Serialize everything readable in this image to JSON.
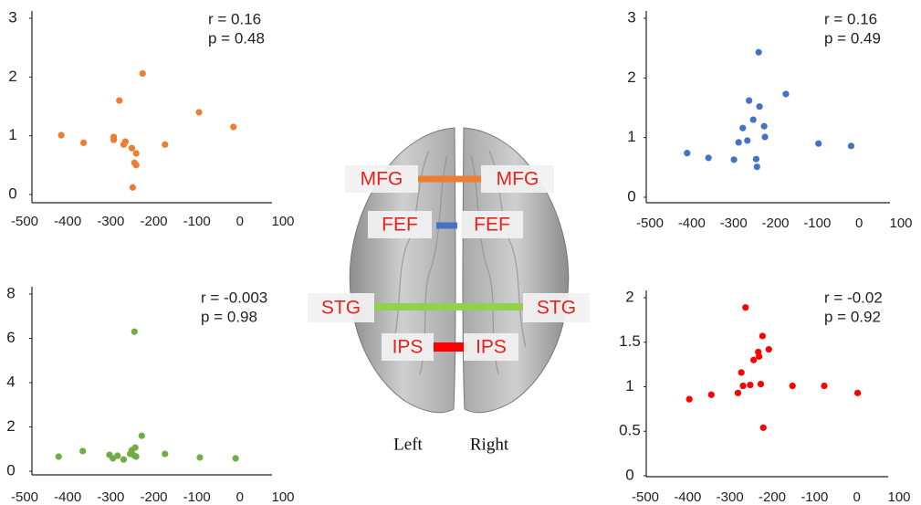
{
  "chart_data": [
    {
      "type": "scatter",
      "color": "#ed7d31",
      "annotations": [
        "r = 0.16",
        "p = 0.48"
      ],
      "x": [
        -415,
        -363,
        -293,
        -293,
        -280,
        -270,
        -266,
        -251,
        -241,
        -245,
        -241,
        -249,
        -226,
        -174,
        -95,
        -15
      ],
      "values": [
        1.01,
        0.88,
        0.98,
        0.93,
        1.6,
        0.85,
        0.9,
        0.79,
        0.7,
        0.54,
        0.5,
        0.12,
        2.06,
        0.85,
        1.4,
        1.15
      ],
      "xlim": [
        -500,
        100
      ],
      "ylim": [
        0,
        3
      ],
      "xticks": [
        -500,
        -400,
        -300,
        -200,
        -100,
        0,
        100
      ],
      "yticks": [
        0,
        1,
        2,
        3
      ]
    },
    {
      "type": "scatter",
      "color": "#4472c4",
      "annotations": [
        "r = 0.16",
        "p = 0.49"
      ],
      "x": [
        -411,
        -360,
        -299,
        -288,
        -267,
        -278,
        -263,
        -253,
        -238,
        -240,
        -227,
        -225,
        -246,
        -244,
        -175,
        -97,
        -19
      ],
      "values": [
        0.74,
        0.66,
        0.63,
        0.92,
        0.95,
        1.16,
        1.62,
        1.3,
        1.52,
        2.43,
        1.19,
        1.01,
        0.64,
        0.51,
        1.73,
        0.9,
        0.86
      ],
      "xlim": [
        -500,
        100
      ],
      "ylim": [
        0,
        3
      ],
      "xticks": [
        -500,
        -400,
        -300,
        -200,
        -100,
        0,
        100
      ],
      "yticks": [
        0,
        1,
        2,
        3
      ]
    },
    {
      "type": "scatter",
      "color": "#70ad47",
      "annotations": [
        "r = -0.003",
        "p = 0.98"
      ],
      "x": [
        -421,
        -365,
        -303,
        -295,
        -284,
        -270,
        -255,
        -251,
        -245,
        -243,
        -241,
        -245,
        -228,
        -174,
        -93,
        -10
      ],
      "values": [
        0.66,
        0.91,
        0.74,
        0.58,
        0.7,
        0.53,
        0.78,
        0.95,
        0.7,
        1.07,
        0.66,
        6.3,
        1.6,
        0.78,
        0.62,
        0.58
      ],
      "xlim": [
        -500,
        100
      ],
      "ylim": [
        0,
        8
      ],
      "xticks": [
        -500,
        -400,
        -300,
        -200,
        -100,
        0,
        100
      ],
      "yticks": [
        0,
        2,
        4,
        6,
        8
      ]
    },
    {
      "type": "scatter",
      "color": "#ff0000",
      "annotations": [
        "r = -0.02",
        "p = 0.92"
      ],
      "x": [
        -396,
        -344,
        -281,
        -273,
        -269,
        -263,
        -252,
        -244,
        -231,
        -233,
        -223,
        -227,
        -208,
        -221,
        -152,
        -77,
        2
      ],
      "values": [
        0.86,
        0.91,
        0.93,
        1.16,
        1.01,
        1.89,
        1.02,
        1.3,
        1.34,
        1.39,
        1.57,
        1.03,
        1.42,
        0.54,
        1.01,
        1.01,
        0.93
      ],
      "xlim": [
        -500,
        100
      ],
      "ylim": [
        0,
        2
      ],
      "xticks": [
        -500,
        -400,
        -300,
        -200,
        -100,
        0,
        100
      ],
      "yticks": [
        0,
        0.5,
        1,
        1.5,
        2
      ]
    }
  ],
  "brain": {
    "regions": [
      {
        "left": "MFG",
        "right": "MFG",
        "color": "#ed7d31"
      },
      {
        "left": "FEF",
        "right": "FEF",
        "color": "#4472c4"
      },
      {
        "left": "STG",
        "right": "STG",
        "color": "#92d050"
      },
      {
        "left": "IPS",
        "right": "IPS",
        "color": "#ff0000"
      }
    ],
    "sides": [
      "Left",
      "Right"
    ]
  }
}
